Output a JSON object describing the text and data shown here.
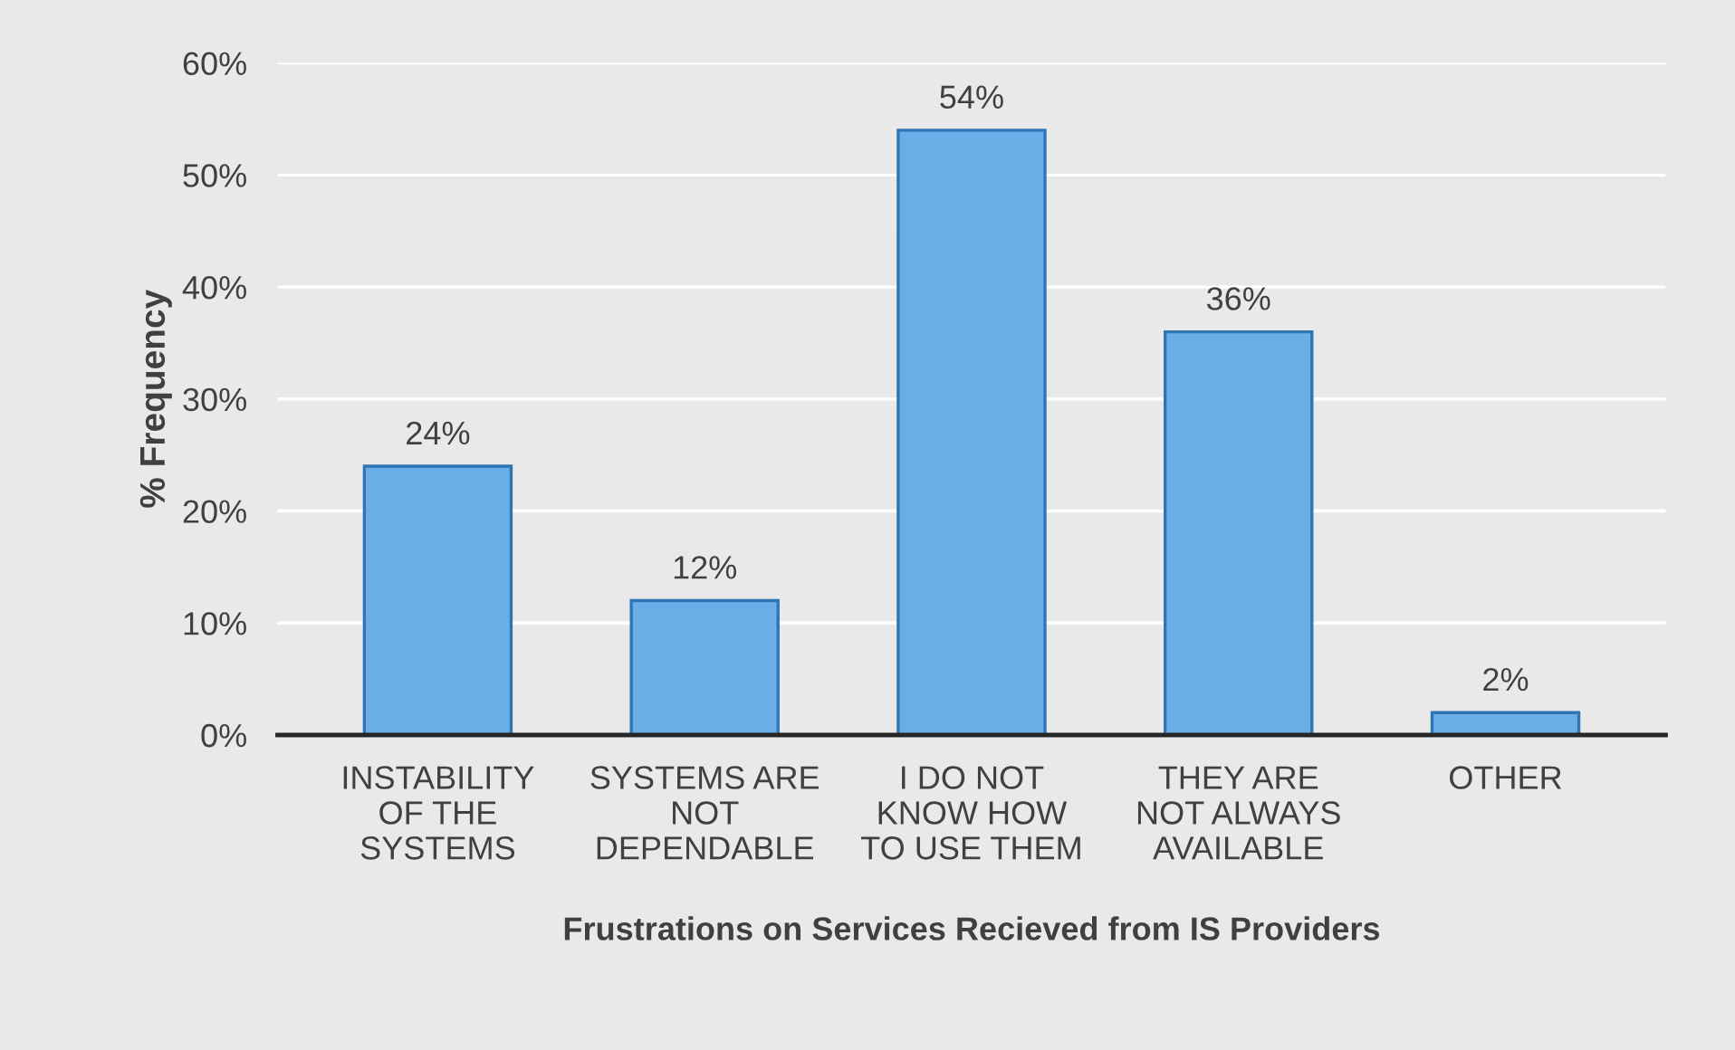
{
  "chart_data": {
    "type": "bar",
    "xlabel": "Frustrations on Services Recieved from IS Providers",
    "ylabel": "% Frequency",
    "categories": [
      "INSTABILITY\nOF THE\nSYSTEMS",
      "SYSTEMS ARE\nNOT\nDEPENDABLE",
      "I DO NOT\nKNOW HOW\nTO USE THEM",
      "THEY ARE\nNOT ALWAYS\nAVAILABLE",
      "OTHER"
    ],
    "values": [
      24,
      12,
      54,
      36,
      2
    ],
    "value_labels": [
      "24%",
      "12%",
      "54%",
      "36%",
      "2%"
    ],
    "color": "#6aaee8",
    "ylim": [
      0,
      60
    ],
    "yticks": [
      {
        "value": 0,
        "label": "0%"
      },
      {
        "value": 10,
        "label": "10%"
      },
      {
        "value": 20,
        "label": "20%"
      },
      {
        "value": 30,
        "label": "30%"
      },
      {
        "value": 40,
        "label": "40%"
      },
      {
        "value": 50,
        "label": "50%"
      },
      {
        "value": 60,
        "label": "60%"
      }
    ],
    "grid": "y"
  }
}
